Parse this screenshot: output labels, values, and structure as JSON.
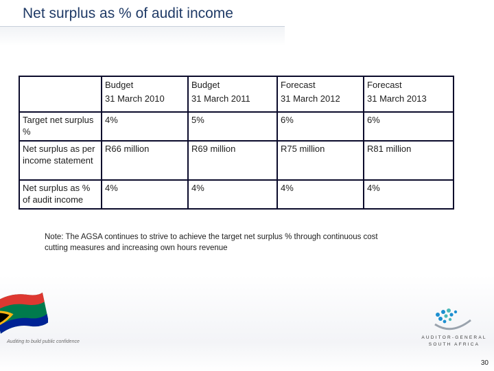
{
  "slide": {
    "title": "Net surplus as % of audit income",
    "page_number": "30"
  },
  "table": {
    "headers": [
      {
        "line1": "",
        "line2": ""
      },
      {
        "line1": "Budget",
        "line2": "31 March 2010"
      },
      {
        "line1": "Budget",
        "line2": "31 March 2011"
      },
      {
        "line1": "Forecast",
        "line2": "31 March 2012"
      },
      {
        "line1": "Forecast",
        "line2": "31 March 2013"
      }
    ],
    "rows": [
      {
        "label": "Target net surplus %",
        "values": [
          "4%",
          "5%",
          "6%",
          "6%"
        ]
      },
      {
        "label": "Net surplus as per income statement",
        "values": [
          "R66 million",
          "R69 million",
          "R75 million",
          "R81 million"
        ]
      },
      {
        "label": "Net surplus as % of audit income",
        "values": [
          "4%",
          "4%",
          "4%",
          "4%"
        ]
      }
    ]
  },
  "note": "Note: The AGSA continues to strive to achieve the target net surplus % through continuous cost cutting measures and increasing own hours revenue",
  "footer": {
    "tagline": "Auditing to build public confidence",
    "logo_line1": "AUDITOR-GENERAL",
    "logo_line2": "SOUTH AFRICA"
  },
  "colors": {
    "title": "#1f3a66",
    "table_border": "#0a0a2a",
    "logo_blue": "#1d8fd0",
    "logo_teal": "#4ab8b8"
  }
}
